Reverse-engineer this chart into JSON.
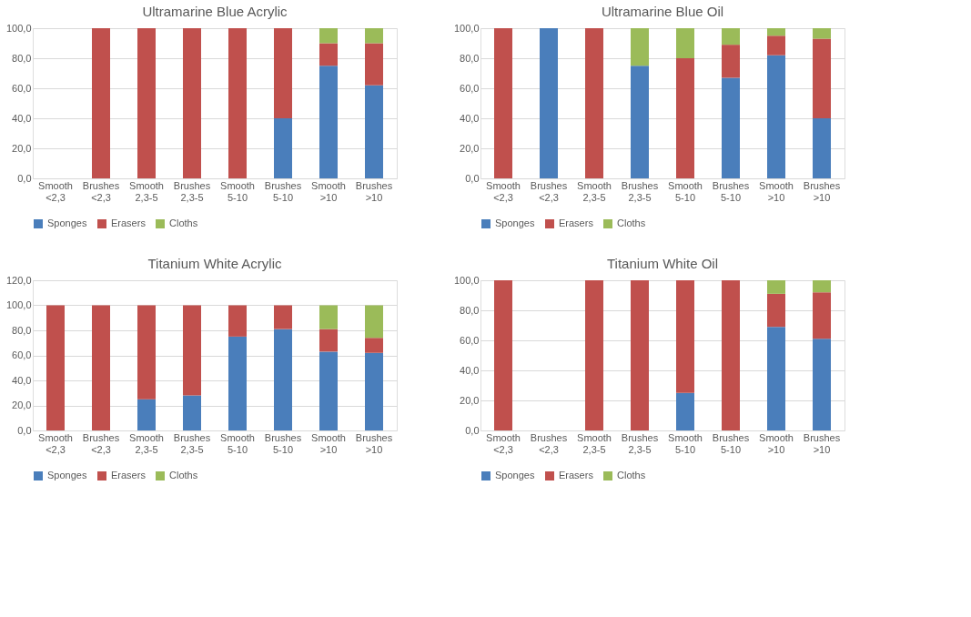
{
  "chart_data": [
    {
      "type": "bar",
      "title": "Ultramarine Blue Acrylic",
      "stacked": true,
      "legend": "bottom",
      "grid": "y",
      "categories": [
        "Smooth <2,3",
        "Brushes <2,3",
        "Smooth 2,3-5",
        "Brushes 2,3-5",
        "Smooth 5-10",
        "Brushes 5-10",
        "Smooth >10",
        "Brushes >10"
      ],
      "ylim": [
        0,
        100
      ],
      "yticks": [
        {
          "value": 0,
          "label": "0,0"
        },
        {
          "value": 20,
          "label": "20,0"
        },
        {
          "value": 40,
          "label": "40,0"
        },
        {
          "value": 60,
          "label": "60,0"
        },
        {
          "value": 80,
          "label": "80,0"
        },
        {
          "value": 100,
          "label": "100,0"
        }
      ],
      "series": [
        {
          "name": "Sponges",
          "color": "#4a7ebb",
          "values": [
            0,
            0,
            0,
            0,
            0,
            40,
            75,
            62
          ]
        },
        {
          "name": "Erasers",
          "color": "#c0504d",
          "values": [
            0,
            100,
            100,
            100,
            100,
            60,
            15,
            28
          ]
        },
        {
          "name": "Cloths",
          "color": "#9bbb59",
          "values": [
            0,
            0,
            0,
            0,
            0,
            0,
            10,
            10
          ]
        }
      ]
    },
    {
      "type": "bar",
      "title": "Ultramarine Blue Oil",
      "stacked": true,
      "legend": "bottom",
      "grid": "y",
      "categories": [
        "Smooth <2,3",
        "Brushes <2,3",
        "Smooth 2,3-5",
        "Brushes 2,3-5",
        "Smooth 5-10",
        "Brushes 5-10",
        "Smooth >10",
        "Brushes >10"
      ],
      "ylim": [
        0,
        100
      ],
      "yticks": [
        {
          "value": 0,
          "label": "0,0"
        },
        {
          "value": 20,
          "label": "20,0"
        },
        {
          "value": 40,
          "label": "40,0"
        },
        {
          "value": 60,
          "label": "60,0"
        },
        {
          "value": 80,
          "label": "80,0"
        },
        {
          "value": 100,
          "label": "100,0"
        }
      ],
      "series": [
        {
          "name": "Sponges",
          "color": "#4a7ebb",
          "values": [
            0,
            100,
            0,
            75,
            0,
            67,
            82,
            40
          ]
        },
        {
          "name": "Erasers",
          "color": "#c0504d",
          "values": [
            100,
            0,
            100,
            0,
            80,
            22,
            13,
            53
          ]
        },
        {
          "name": "Cloths",
          "color": "#9bbb59",
          "values": [
            0,
            0,
            0,
            25,
            20,
            11,
            5,
            7
          ]
        }
      ]
    },
    {
      "type": "bar",
      "title": "Titanium White Acrylic",
      "stacked": true,
      "legend": "bottom",
      "grid": "y",
      "categories": [
        "Smooth <2,3",
        "Brushes <2,3",
        "Smooth 2,3-5",
        "Brushes 2,3-5",
        "Smooth 5-10",
        "Brushes 5-10",
        "Smooth >10",
        "Brushes >10"
      ],
      "ylim": [
        0,
        120
      ],
      "yticks": [
        {
          "value": 0,
          "label": "0,0"
        },
        {
          "value": 20,
          "label": "20,0"
        },
        {
          "value": 40,
          "label": "40,0"
        },
        {
          "value": 60,
          "label": "60,0"
        },
        {
          "value": 80,
          "label": "80,0"
        },
        {
          "value": 100,
          "label": "100,0"
        },
        {
          "value": 120,
          "label": "120,0"
        }
      ],
      "series": [
        {
          "name": "Sponges",
          "color": "#4a7ebb",
          "values": [
            0,
            0,
            25,
            28,
            75,
            81,
            63,
            62
          ]
        },
        {
          "name": "Erasers",
          "color": "#c0504d",
          "values": [
            100,
            100,
            75,
            72,
            25,
            19,
            18,
            12
          ]
        },
        {
          "name": "Cloths",
          "color": "#9bbb59",
          "values": [
            0,
            0,
            0,
            0,
            0,
            0,
            19,
            26
          ]
        }
      ]
    },
    {
      "type": "bar",
      "title": "Titanium White Oil",
      "stacked": true,
      "legend": "bottom",
      "grid": "y",
      "categories": [
        "Smooth <2,3",
        "Brushes <2,3",
        "Smooth 2,3-5",
        "Brushes 2,3-5",
        "Smooth 5-10",
        "Brushes 5-10",
        "Smooth >10",
        "Brushes >10"
      ],
      "ylim": [
        0,
        100
      ],
      "yticks": [
        {
          "value": 0,
          "label": "0,0"
        },
        {
          "value": 20,
          "label": "20,0"
        },
        {
          "value": 40,
          "label": "40,0"
        },
        {
          "value": 60,
          "label": "60,0"
        },
        {
          "value": 80,
          "label": "80,0"
        },
        {
          "value": 100,
          "label": "100,0"
        }
      ],
      "series": [
        {
          "name": "Sponges",
          "color": "#4a7ebb",
          "values": [
            0,
            0,
            0,
            0,
            25,
            0,
            69,
            61
          ]
        },
        {
          "name": "Erasers",
          "color": "#c0504d",
          "values": [
            100,
            0,
            100,
            100,
            75,
            100,
            22,
            31
          ]
        },
        {
          "name": "Cloths",
          "color": "#9bbb59",
          "values": [
            0,
            0,
            0,
            0,
            0,
            0,
            9,
            8
          ]
        }
      ]
    }
  ]
}
